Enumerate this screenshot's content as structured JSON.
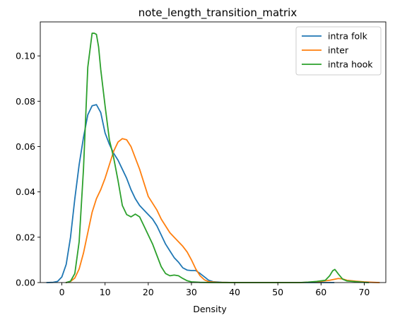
{
  "chart_data": {
    "type": "line",
    "title": "note_length_transition_matrix",
    "xlabel": "Density",
    "ylabel": "",
    "xlim": [
      -5,
      75
    ],
    "ylim": [
      0,
      0.115
    ],
    "xticks": [
      0,
      10,
      20,
      30,
      40,
      50,
      60,
      70
    ],
    "yticks": [
      0.0,
      0.02,
      0.04,
      0.06,
      0.08,
      0.1
    ],
    "ytick_labels": [
      "0.00",
      "0.02",
      "0.04",
      "0.06",
      "0.08",
      "0.10"
    ],
    "xtick_labels": [
      "0",
      "10",
      "20",
      "30",
      "40",
      "50",
      "60",
      "70"
    ],
    "grid": false,
    "legend_placement": "top-right",
    "series": [
      {
        "name": "intra folk",
        "color": "#1f77b4",
        "points": [
          [
            -3.5,
            0.0
          ],
          [
            -2,
            0.0001
          ],
          [
            -1,
            0.0005
          ],
          [
            0,
            0.0025
          ],
          [
            1,
            0.008
          ],
          [
            2,
            0.02
          ],
          [
            3,
            0.037
          ],
          [
            4,
            0.052
          ],
          [
            5,
            0.064
          ],
          [
            6,
            0.074
          ],
          [
            7,
            0.078
          ],
          [
            8,
            0.0785
          ],
          [
            9,
            0.075
          ],
          [
            10,
            0.066
          ],
          [
            11,
            0.061
          ],
          [
            12,
            0.057
          ],
          [
            13,
            0.054
          ],
          [
            14,
            0.05
          ],
          [
            15,
            0.046
          ],
          [
            16,
            0.041
          ],
          [
            17,
            0.037
          ],
          [
            18,
            0.034
          ],
          [
            19,
            0.032
          ],
          [
            20,
            0.03
          ],
          [
            21,
            0.028
          ],
          [
            22,
            0.025
          ],
          [
            23,
            0.021
          ],
          [
            24,
            0.017
          ],
          [
            25,
            0.014
          ],
          [
            26,
            0.011
          ],
          [
            27,
            0.009
          ],
          [
            28,
            0.0065
          ],
          [
            29,
            0.0055
          ],
          [
            30,
            0.0053
          ],
          [
            31,
            0.0053
          ],
          [
            32,
            0.004
          ],
          [
            33,
            0.0025
          ],
          [
            34,
            0.001
          ],
          [
            35,
            0.0004
          ],
          [
            37,
            0.0001
          ],
          [
            40,
            0.0
          ],
          [
            50,
            0.0
          ],
          [
            60,
            0.0
          ],
          [
            63,
            0.0
          ]
        ]
      },
      {
        "name": "inter",
        "color": "#ff7f0e",
        "points": [
          [
            1,
            0.0
          ],
          [
            2,
            0.0005
          ],
          [
            3,
            0.002
          ],
          [
            4,
            0.006
          ],
          [
            5,
            0.013
          ],
          [
            6,
            0.022
          ],
          [
            7,
            0.031
          ],
          [
            8,
            0.037
          ],
          [
            9,
            0.041
          ],
          [
            10,
            0.046
          ],
          [
            11,
            0.052
          ],
          [
            12,
            0.058
          ],
          [
            13,
            0.062
          ],
          [
            14,
            0.0635
          ],
          [
            15,
            0.063
          ],
          [
            16,
            0.06
          ],
          [
            17,
            0.055
          ],
          [
            18,
            0.05
          ],
          [
            19,
            0.044
          ],
          [
            20,
            0.038
          ],
          [
            21,
            0.035
          ],
          [
            22,
            0.032
          ],
          [
            23,
            0.028
          ],
          [
            24,
            0.025
          ],
          [
            25,
            0.022
          ],
          [
            26,
            0.02
          ],
          [
            27,
            0.018
          ],
          [
            28,
            0.016
          ],
          [
            29,
            0.0135
          ],
          [
            30,
            0.01
          ],
          [
            31,
            0.006
          ],
          [
            32,
            0.003
          ],
          [
            33,
            0.0012
          ],
          [
            34,
            0.0004
          ],
          [
            36,
            0.0001
          ],
          [
            40,
            0.0
          ],
          [
            50,
            0.0
          ],
          [
            55,
            0.0
          ],
          [
            58,
            0.0002
          ],
          [
            60,
            0.0005
          ],
          [
            62,
            0.001
          ],
          [
            64,
            0.0018
          ],
          [
            65,
            0.0016
          ],
          [
            66,
            0.001
          ],
          [
            68,
            0.0006
          ],
          [
            70,
            0.0003
          ],
          [
            72,
            0.0001
          ],
          [
            73.5,
            0.0
          ]
        ]
      },
      {
        "name": "intra hook",
        "color": "#2ca02c",
        "points": [
          [
            1,
            0.0
          ],
          [
            2,
            0.0006
          ],
          [
            3,
            0.004
          ],
          [
            4,
            0.018
          ],
          [
            5,
            0.05
          ],
          [
            6,
            0.095
          ],
          [
            7,
            0.11
          ],
          [
            7.5,
            0.11
          ],
          [
            8,
            0.1095
          ],
          [
            8.5,
            0.104
          ],
          [
            9,
            0.094
          ],
          [
            10,
            0.078
          ],
          [
            11,
            0.063
          ],
          [
            12,
            0.055
          ],
          [
            13,
            0.045
          ],
          [
            14,
            0.034
          ],
          [
            15,
            0.03
          ],
          [
            16,
            0.029
          ],
          [
            17,
            0.0302
          ],
          [
            18,
            0.029
          ],
          [
            19,
            0.025
          ],
          [
            20,
            0.021
          ],
          [
            21,
            0.017
          ],
          [
            22,
            0.012
          ],
          [
            23,
            0.007
          ],
          [
            24,
            0.004
          ],
          [
            25,
            0.003
          ],
          [
            26,
            0.0033
          ],
          [
            27,
            0.003
          ],
          [
            28,
            0.0018
          ],
          [
            29,
            0.0008
          ],
          [
            30,
            0.0003
          ],
          [
            32,
            0.0001
          ],
          [
            35,
            0.0
          ],
          [
            40,
            0.0
          ],
          [
            50,
            0.0
          ],
          [
            55,
            0.0
          ],
          [
            57,
            0.0002
          ],
          [
            59,
            0.0005
          ],
          [
            61,
            0.001
          ],
          [
            62,
            0.003
          ],
          [
            62.7,
            0.0052
          ],
          [
            63.2,
            0.0058
          ],
          [
            64,
            0.0038
          ],
          [
            65,
            0.0015
          ],
          [
            66,
            0.0007
          ],
          [
            68,
            0.0004
          ],
          [
            70,
            0.0001
          ],
          [
            71,
            0.0
          ]
        ]
      }
    ]
  }
}
